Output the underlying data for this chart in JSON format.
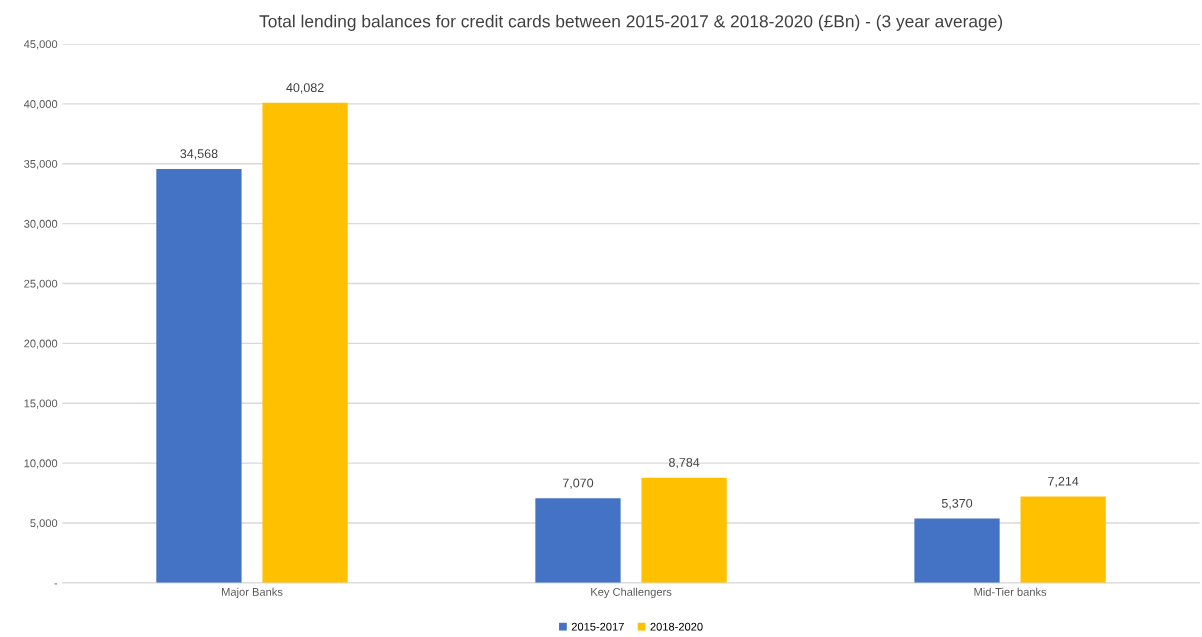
{
  "chart_data": {
    "type": "bar",
    "title": "Total lending balances for credit cards between 2015-2017 & 2018-2020 (£Bn) - (3 year average)",
    "categories": [
      "Major Banks",
      "Key Challengers",
      "Mid-Tier banks"
    ],
    "series": [
      {
        "name": "2015-2017",
        "color": "#4472c4",
        "values": [
          34568,
          7070,
          5370
        ],
        "value_labels": [
          "34,568",
          "7,070",
          "5,370"
        ]
      },
      {
        "name": "2018-2020",
        "color": "#ffc000",
        "values": [
          40082,
          8784,
          7214
        ],
        "value_labels": [
          "40,082",
          "8,784",
          "7,214"
        ]
      }
    ],
    "ylim": [
      0,
      45000
    ],
    "yticks": [
      {
        "value": 0,
        "label": "-"
      },
      {
        "value": 5000,
        "label": "5,000"
      },
      {
        "value": 10000,
        "label": "10,000"
      },
      {
        "value": 15000,
        "label": "15,000"
      },
      {
        "value": 20000,
        "label": "20,000"
      },
      {
        "value": 25000,
        "label": "25,000"
      },
      {
        "value": 30000,
        "label": "30,000"
      },
      {
        "value": 35000,
        "label": "35,000"
      },
      {
        "value": 40000,
        "label": "40,000"
      },
      {
        "value": 45000,
        "label": "45,000"
      }
    ],
    "grid": "y",
    "legend": "bottom"
  }
}
